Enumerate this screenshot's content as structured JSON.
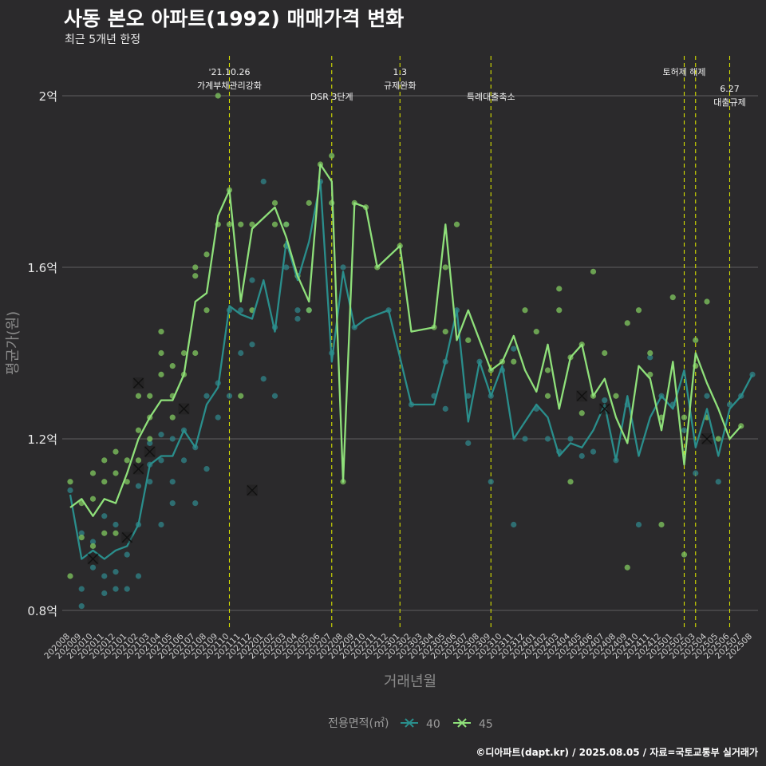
{
  "header": {
    "title": "사동 본오 아파트(1992) 매매가격 변화",
    "subtitle": "최근 5개년 한정"
  },
  "caption": "©디아파트(dapt.kr) / 2025.08.05 / 자료=국토교통부 실거래가",
  "legend": {
    "title": "전용면적(㎡)",
    "items": [
      "40",
      "45"
    ]
  },
  "colors": {
    "background": "#2b2a2c",
    "grid": "#555555",
    "series40": "#2a8e8c",
    "series45": "#8fe07a",
    "point40": "#2f7f84",
    "point45": "#7cbf5c",
    "event_line": "#d6e000"
  },
  "chart_data": {
    "type": "line",
    "title": "사동 본오 아파트(1992) 매매가격 변화",
    "subtitle": "최근 5개년 한정",
    "xlabel": "거래년월",
    "ylabel": "평균가(원)",
    "ylim": [
      0.75,
      2.08
    ],
    "grid": true,
    "legend_position": "bottom",
    "y_ticks": [
      0.8,
      1.2,
      1.6,
      2.0
    ],
    "y_tick_labels": [
      "0.8억",
      "1.2억",
      "1.6억",
      "2억"
    ],
    "categories": [
      "202008",
      "202009",
      "202010",
      "202011",
      "202012",
      "202101",
      "202102",
      "202103",
      "202104",
      "202105",
      "202106",
      "202107",
      "202108",
      "202109",
      "202110",
      "202111",
      "202112",
      "202201",
      "202202",
      "202203",
      "202204",
      "202205",
      "202206",
      "202207",
      "202208",
      "202209",
      "202210",
      "202211",
      "202212",
      "202301",
      "202302",
      "202303",
      "202304",
      "202305",
      "202306",
      "202307",
      "202308",
      "202309",
      "202310",
      "202311",
      "202312",
      "202401",
      "202402",
      "202403",
      "202404",
      "202405",
      "202406",
      "202407",
      "202408",
      "202409",
      "202410",
      "202411",
      "202412",
      "202501",
      "202502",
      "202503",
      "202504",
      "202505",
      "202506",
      "202507",
      "202508"
    ],
    "x_tick_labels": [
      "202008",
      "202009",
      "202010",
      "202011",
      "202012",
      "202101",
      "202102",
      "202103",
      "202104",
      "202105",
      "202106",
      "202107",
      "202108",
      "202109",
      "202110",
      "202111",
      "202112",
      "202201",
      "202202",
      "202203",
      "202204",
      "202205",
      "202206",
      "202207",
      "202208",
      "202209",
      "202210",
      "202211",
      "202212",
      "202301",
      "202302",
      "202303",
      "202304",
      "202305",
      "202306",
      "202307",
      "202308",
      "202309",
      "202310",
      "202311",
      "202312",
      "202401",
      "202402",
      "202403",
      "202404",
      "202405",
      "202406",
      "202407",
      "202408",
      "202409",
      "202410",
      "202411",
      "202412",
      "202501",
      "202502",
      "202503",
      "202504",
      "202505",
      "202506",
      "202507",
      "202508"
    ],
    "series": [
      {
        "name": "40",
        "x": [
          0,
          1,
          2,
          3,
          4,
          5,
          6,
          7,
          8,
          9,
          10,
          11,
          12,
          13,
          14,
          15,
          16,
          17,
          18,
          19,
          20,
          21,
          22,
          23,
          24,
          25,
          26,
          28,
          30,
          32,
          33,
          34,
          35,
          36,
          37,
          38,
          39,
          40,
          41,
          42,
          43,
          44,
          45,
          46,
          47,
          48,
          49,
          50,
          51,
          52,
          53,
          54,
          55,
          56,
          57,
          58,
          59,
          60
        ],
        "values": [
          1.07,
          0.92,
          0.94,
          0.92,
          0.94,
          0.95,
          1.0,
          1.14,
          1.16,
          1.16,
          1.22,
          1.18,
          1.28,
          1.32,
          1.51,
          1.49,
          1.48,
          1.57,
          1.45,
          1.66,
          1.57,
          1.66,
          1.8,
          1.38,
          1.59,
          1.46,
          1.48,
          1.5,
          1.28,
          1.28,
          1.38,
          1.5,
          1.24,
          1.38,
          1.3,
          1.37,
          1.2,
          1.24,
          1.28,
          1.25,
          1.16,
          1.19,
          1.18,
          1.22,
          1.28,
          1.15,
          1.3,
          1.16,
          1.25,
          1.3,
          1.27,
          1.36,
          1.18,
          1.27,
          1.16,
          1.27,
          1.3,
          1.35
        ]
      },
      {
        "name": "45",
        "x": [
          0,
          1,
          2,
          3,
          4,
          5,
          6,
          7,
          8,
          9,
          10,
          11,
          12,
          13,
          14,
          15,
          16,
          18,
          19,
          20,
          21,
          22,
          23,
          24,
          25,
          26,
          27,
          29,
          30,
          32,
          33,
          34,
          35,
          37,
          38,
          39,
          40,
          41,
          42,
          43,
          44,
          45,
          46,
          47,
          48,
          49,
          50,
          51,
          52,
          53,
          54,
          55,
          56,
          57,
          58,
          59
        ],
        "values": [
          1.04,
          1.06,
          1.02,
          1.06,
          1.05,
          1.12,
          1.2,
          1.25,
          1.29,
          1.29,
          1.35,
          1.52,
          1.54,
          1.72,
          1.78,
          1.52,
          1.69,
          1.74,
          1.67,
          1.58,
          1.52,
          1.84,
          1.8,
          1.1,
          1.75,
          1.74,
          1.6,
          1.65,
          1.45,
          1.46,
          1.7,
          1.43,
          1.5,
          1.36,
          1.38,
          1.44,
          1.36,
          1.31,
          1.42,
          1.27,
          1.39,
          1.42,
          1.3,
          1.34,
          1.25,
          1.19,
          1.37,
          1.34,
          1.22,
          1.38,
          1.14,
          1.4,
          1.33,
          1.27,
          1.2,
          1.23
        ]
      }
    ],
    "scatter": [
      {
        "name": "40",
        "points": [
          [
            0,
            1.08
          ],
          [
            1,
            0.81
          ],
          [
            1,
            0.85
          ],
          [
            1,
            0.98
          ],
          [
            2,
            0.9
          ],
          [
            2,
            0.96
          ],
          [
            3,
            0.84
          ],
          [
            3,
            0.88
          ],
          [
            3,
            1.02
          ],
          [
            4,
            0.85
          ],
          [
            4,
            0.89
          ],
          [
            4,
            1.0
          ],
          [
            5,
            0.85
          ],
          [
            5,
            0.93
          ],
          [
            6,
            0.88
          ],
          [
            6,
            1.0
          ],
          [
            6,
            1.09
          ],
          [
            7,
            1.1
          ],
          [
            7,
            1.14
          ],
          [
            7,
            1.19
          ],
          [
            8,
            1.0
          ],
          [
            8,
            1.15
          ],
          [
            8,
            1.21
          ],
          [
            9,
            1.05
          ],
          [
            9,
            1.1
          ],
          [
            9,
            1.2
          ],
          [
            10,
            1.15
          ],
          [
            10,
            1.22
          ],
          [
            11,
            1.05
          ],
          [
            11,
            1.18
          ],
          [
            12,
            1.13
          ],
          [
            12,
            1.3
          ],
          [
            13,
            1.25
          ],
          [
            13,
            1.33
          ],
          [
            14,
            1.3
          ],
          [
            14,
            1.5
          ],
          [
            15,
            1.4
          ],
          [
            15,
            1.5
          ],
          [
            16,
            1.42
          ],
          [
            16,
            1.57
          ],
          [
            17,
            1.34
          ],
          [
            17,
            1.8
          ],
          [
            18,
            1.3
          ],
          [
            18,
            1.46
          ],
          [
            19,
            1.6
          ],
          [
            19,
            1.7
          ],
          [
            20,
            1.48
          ],
          [
            20,
            1.5
          ],
          [
            21,
            1.5
          ],
          [
            22,
            1.8
          ],
          [
            23,
            1.4
          ],
          [
            24,
            1.6
          ],
          [
            25,
            1.46
          ],
          [
            28,
            1.5
          ],
          [
            30,
            1.28
          ],
          [
            32,
            1.3
          ],
          [
            33,
            1.27
          ],
          [
            33,
            1.38
          ],
          [
            34,
            1.5
          ],
          [
            35,
            1.19
          ],
          [
            35,
            1.3
          ],
          [
            36,
            1.38
          ],
          [
            37,
            1.1
          ],
          [
            37,
            1.3
          ],
          [
            38,
            1.36
          ],
          [
            39,
            1.0
          ],
          [
            39,
            1.41
          ],
          [
            40,
            1.2
          ],
          [
            41,
            1.27
          ],
          [
            42,
            1.2
          ],
          [
            43,
            1.17
          ],
          [
            44,
            1.2
          ],
          [
            45,
            1.16
          ],
          [
            46,
            1.17
          ],
          [
            47,
            1.29
          ],
          [
            48,
            1.15
          ],
          [
            49,
            1.28
          ],
          [
            50,
            1.0
          ],
          [
            51,
            1.39
          ],
          [
            52,
            1.3
          ],
          [
            53,
            1.28
          ],
          [
            54,
            1.22
          ],
          [
            55,
            1.12
          ],
          [
            56,
            1.3
          ],
          [
            57,
            1.1
          ],
          [
            58,
            1.28
          ],
          [
            59,
            1.3
          ],
          [
            60,
            1.35
          ]
        ]
      },
      {
        "name": "45",
        "points": [
          [
            0,
            0.88
          ],
          [
            0,
            1.1
          ],
          [
            1,
            1.05
          ],
          [
            1,
            0.97
          ],
          [
            2,
            0.95
          ],
          [
            2,
            1.06
          ],
          [
            2,
            1.12
          ],
          [
            3,
            1.1
          ],
          [
            3,
            1.15
          ],
          [
            3,
            0.98
          ],
          [
            4,
            1.17
          ],
          [
            4,
            1.12
          ],
          [
            4,
            0.98
          ],
          [
            5,
            1.15
          ],
          [
            5,
            1.1
          ],
          [
            6,
            1.3
          ],
          [
            6,
            1.22
          ],
          [
            6,
            1.15
          ],
          [
            7,
            1.25
          ],
          [
            7,
            1.3
          ],
          [
            7,
            1.2
          ],
          [
            8,
            1.35
          ],
          [
            8,
            1.4
          ],
          [
            8,
            1.45
          ],
          [
            9,
            1.37
          ],
          [
            9,
            1.3
          ],
          [
            9,
            1.25
          ],
          [
            10,
            1.4
          ],
          [
            10,
            1.35
          ],
          [
            11,
            1.6
          ],
          [
            11,
            1.58
          ],
          [
            11,
            1.4
          ],
          [
            12,
            1.63
          ],
          [
            12,
            1.5
          ],
          [
            13,
            2.0
          ],
          [
            13,
            1.7
          ],
          [
            14,
            1.7
          ],
          [
            14,
            1.78
          ],
          [
            15,
            1.3
          ],
          [
            15,
            1.7
          ],
          [
            16,
            1.7
          ],
          [
            16,
            1.5
          ],
          [
            18,
            1.75
          ],
          [
            18,
            1.7
          ],
          [
            19,
            1.7
          ],
          [
            19,
            1.65
          ],
          [
            20,
            1.58
          ],
          [
            21,
            1.75
          ],
          [
            21,
            1.5
          ],
          [
            22,
            1.84
          ],
          [
            23,
            1.86
          ],
          [
            23,
            1.75
          ],
          [
            24,
            1.1
          ],
          [
            25,
            1.75
          ],
          [
            26,
            1.74
          ],
          [
            27,
            1.6
          ],
          [
            29,
            1.65
          ],
          [
            32,
            1.46
          ],
          [
            33,
            1.6
          ],
          [
            33,
            1.45
          ],
          [
            34,
            1.7
          ],
          [
            35,
            1.43
          ],
          [
            37,
            1.36
          ],
          [
            38,
            1.38
          ],
          [
            39,
            1.38
          ],
          [
            40,
            1.5
          ],
          [
            41,
            1.45
          ],
          [
            42,
            1.36
          ],
          [
            42,
            1.3
          ],
          [
            43,
            1.5
          ],
          [
            43,
            1.55
          ],
          [
            44,
            1.1
          ],
          [
            44,
            1.39
          ],
          [
            45,
            1.42
          ],
          [
            45,
            1.26
          ],
          [
            46,
            1.59
          ],
          [
            46,
            1.3
          ],
          [
            47,
            1.4
          ],
          [
            48,
            1.3
          ],
          [
            49,
            1.47
          ],
          [
            49,
            0.9
          ],
          [
            50,
            1.5
          ],
          [
            51,
            1.4
          ],
          [
            51,
            1.35
          ],
          [
            52,
            1.0
          ],
          [
            52,
            1.25
          ],
          [
            53,
            1.53
          ],
          [
            54,
            0.93
          ],
          [
            54,
            1.25
          ],
          [
            55,
            1.43
          ],
          [
            55,
            1.37
          ],
          [
            56,
            1.52
          ],
          [
            56,
            1.25
          ],
          [
            57,
            1.2
          ],
          [
            59,
            1.23
          ]
        ]
      }
    ],
    "x_markers": [
      {
        "name": "40",
        "points": [
          [
            2,
            0.92
          ],
          [
            6,
            1.13
          ],
          [
            10,
            1.27
          ],
          [
            16,
            1.08
          ],
          [
            45,
            1.3
          ],
          [
            47,
            1.27
          ]
        ]
      },
      {
        "name": "45",
        "points": [
          [
            5,
            0.97
          ],
          [
            6,
            1.33
          ],
          [
            7,
            1.17
          ],
          [
            56,
            1.2
          ]
        ]
      }
    ],
    "events": [
      {
        "x": 14,
        "label_lines": [
          "'21.10.26",
          "가계부채관리강화"
        ],
        "level": 0
      },
      {
        "x": 23,
        "label_lines": [
          "DSR 3단계"
        ],
        "level": 1
      },
      {
        "x": 29,
        "label_lines": [
          "1.3",
          "규제완화"
        ],
        "level": 0
      },
      {
        "x": 37,
        "label_lines": [
          "특례대출축소"
        ],
        "level": 1
      },
      {
        "x": 54,
        "label_lines": [
          "토허제 해제"
        ],
        "level": 0
      },
      {
        "x": 55,
        "label_lines": [],
        "level": 0
      },
      {
        "x": 58,
        "label_lines": [
          "6.27",
          "대출규제"
        ],
        "level": 2
      }
    ]
  }
}
